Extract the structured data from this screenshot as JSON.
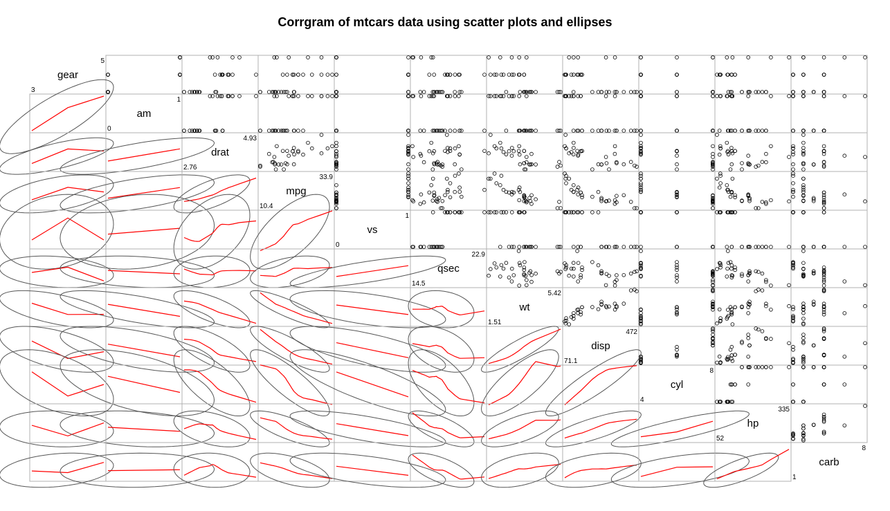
{
  "chart_data": {
    "type": "scatter",
    "title": "Corrgram of mtcars data using scatter plots and ellipses",
    "panel_upper": "scatter plots",
    "panel_lower": "ellipses with red loess smoothers",
    "variables": [
      {
        "name": "gear",
        "min": 3,
        "max": 5
      },
      {
        "name": "am",
        "min": 0,
        "max": 1
      },
      {
        "name": "drat",
        "min": 2.76,
        "max": 4.93
      },
      {
        "name": "mpg",
        "min": 10.4,
        "max": 33.9
      },
      {
        "name": "vs",
        "min": 0,
        "max": 1
      },
      {
        "name": "qsec",
        "min": 14.5,
        "max": 22.9
      },
      {
        "name": "wt",
        "min": 1.51,
        "max": 5.42
      },
      {
        "name": "disp",
        "min": 71.1,
        "max": 472
      },
      {
        "name": "cyl",
        "min": 4,
        "max": 8
      },
      {
        "name": "hp",
        "min": 52,
        "max": 335
      },
      {
        "name": "carb",
        "min": 1,
        "max": 8
      }
    ],
    "range_labels": [
      [
        "3",
        "5"
      ],
      [
        "0",
        "1"
      ],
      [
        "2.76",
        "4.93"
      ],
      [
        "10.4",
        "33.9"
      ],
      [
        "0",
        "1"
      ],
      [
        "14.5",
        "22.9"
      ],
      [
        "1.51",
        "5.42"
      ],
      [
        "71.1",
        "472"
      ],
      [
        "4",
        "8"
      ],
      [
        "52",
        "335"
      ],
      [
        "1",
        "8"
      ]
    ],
    "columns": [
      "mpg",
      "cyl",
      "disp",
      "hp",
      "drat",
      "wt",
      "qsec",
      "vs",
      "am",
      "gear",
      "carb"
    ],
    "rows": [
      [
        21.0,
        6,
        160.0,
        110,
        3.9,
        2.62,
        16.46,
        0,
        1,
        4,
        4
      ],
      [
        21.0,
        6,
        160.0,
        110,
        3.9,
        2.875,
        17.02,
        0,
        1,
        4,
        4
      ],
      [
        22.8,
        4,
        108.0,
        93,
        3.85,
        2.32,
        18.61,
        1,
        1,
        4,
        1
      ],
      [
        21.4,
        6,
        258.0,
        110,
        3.08,
        3.215,
        19.44,
        1,
        0,
        3,
        1
      ],
      [
        18.7,
        8,
        360.0,
        175,
        3.15,
        3.44,
        17.02,
        0,
        0,
        3,
        2
      ],
      [
        18.1,
        6,
        225.0,
        105,
        2.76,
        3.46,
        20.22,
        1,
        0,
        3,
        1
      ],
      [
        14.3,
        8,
        360.0,
        245,
        3.21,
        3.57,
        15.84,
        0,
        0,
        3,
        4
      ],
      [
        24.4,
        4,
        146.7,
        62,
        3.69,
        3.19,
        20.0,
        1,
        0,
        4,
        2
      ],
      [
        22.8,
        4,
        140.8,
        95,
        3.92,
        3.15,
        22.9,
        1,
        0,
        4,
        2
      ],
      [
        19.2,
        6,
        167.6,
        123,
        3.92,
        3.44,
        18.3,
        1,
        0,
        4,
        4
      ],
      [
        17.8,
        6,
        167.6,
        123,
        3.92,
        3.44,
        18.9,
        1,
        0,
        4,
        4
      ],
      [
        16.4,
        8,
        275.8,
        180,
        3.07,
        4.07,
        17.4,
        0,
        0,
        3,
        3
      ],
      [
        17.3,
        8,
        275.8,
        180,
        3.07,
        3.73,
        17.6,
        0,
        0,
        3,
        3
      ],
      [
        15.2,
        8,
        275.8,
        180,
        3.07,
        3.78,
        18.0,
        0,
        0,
        3,
        3
      ],
      [
        10.4,
        8,
        472.0,
        205,
        2.93,
        5.25,
        17.98,
        0,
        0,
        3,
        4
      ],
      [
        10.4,
        8,
        460.0,
        215,
        3.0,
        5.424,
        17.82,
        0,
        0,
        3,
        4
      ],
      [
        14.7,
        8,
        440.0,
        230,
        3.23,
        5.345,
        17.42,
        0,
        0,
        3,
        4
      ],
      [
        32.4,
        4,
        78.7,
        66,
        4.08,
        2.2,
        19.47,
        1,
        1,
        4,
        1
      ],
      [
        30.4,
        4,
        75.7,
        52,
        4.93,
        1.615,
        18.52,
        1,
        1,
        4,
        2
      ],
      [
        33.9,
        4,
        71.1,
        65,
        4.22,
        1.835,
        19.9,
        1,
        1,
        4,
        1
      ],
      [
        21.5,
        4,
        120.1,
        97,
        3.7,
        2.465,
        20.01,
        1,
        0,
        3,
        1
      ],
      [
        15.5,
        8,
        318.0,
        150,
        2.76,
        3.52,
        16.87,
        0,
        0,
        3,
        2
      ],
      [
        15.2,
        8,
        304.0,
        150,
        3.15,
        3.435,
        17.3,
        0,
        0,
        3,
        2
      ],
      [
        13.3,
        8,
        350.0,
        245,
        3.73,
        3.84,
        15.41,
        0,
        0,
        3,
        4
      ],
      [
        19.2,
        8,
        400.0,
        175,
        3.08,
        3.845,
        17.05,
        0,
        0,
        3,
        2
      ],
      [
        27.3,
        4,
        79.0,
        66,
        4.08,
        1.935,
        18.9,
        1,
        1,
        4,
        1
      ],
      [
        26.0,
        4,
        120.3,
        91,
        4.43,
        2.14,
        16.7,
        0,
        1,
        5,
        2
      ],
      [
        30.4,
        4,
        95.1,
        113,
        3.77,
        1.513,
        16.9,
        1,
        1,
        5,
        2
      ],
      [
        15.8,
        8,
        351.0,
        264,
        4.22,
        3.17,
        14.5,
        0,
        1,
        5,
        4
      ],
      [
        19.7,
        6,
        145.0,
        175,
        3.62,
        2.77,
        15.5,
        0,
        1,
        5,
        6
      ],
      [
        15.0,
        8,
        301.0,
        335,
        3.54,
        3.57,
        14.6,
        0,
        1,
        5,
        8
      ],
      [
        21.4,
        4,
        121.0,
        109,
        4.11,
        2.78,
        18.6,
        1,
        1,
        4,
        2
      ]
    ]
  },
  "colors": {
    "panel_border": "#b0b0b0",
    "ellipse": "#555555",
    "smoother": "#ff0000",
    "points": "#000000"
  }
}
